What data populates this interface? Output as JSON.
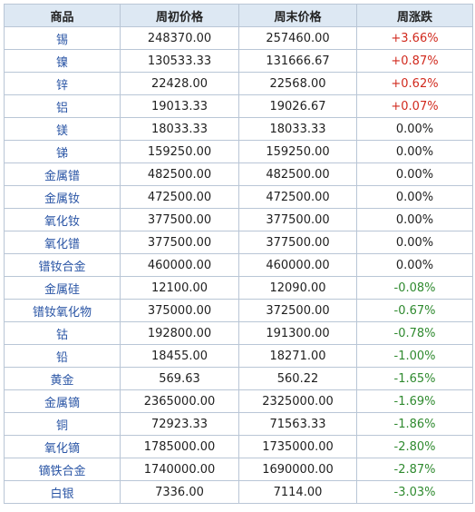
{
  "table": {
    "headers": [
      "商品",
      "周初价格",
      "周末价格",
      "周涨跌"
    ],
    "rows": [
      {
        "name": "锡",
        "start": "248370.00",
        "end": "257460.00",
        "change": "+3.66%",
        "trend": "up"
      },
      {
        "name": "镍",
        "start": "130533.33",
        "end": "131666.67",
        "change": "+0.87%",
        "trend": "up"
      },
      {
        "name": "锌",
        "start": "22428.00",
        "end": "22568.00",
        "change": "+0.62%",
        "trend": "up"
      },
      {
        "name": "铝",
        "start": "19013.33",
        "end": "19026.67",
        "change": "+0.07%",
        "trend": "up"
      },
      {
        "name": "镁",
        "start": "18033.33",
        "end": "18033.33",
        "change": "0.00%",
        "trend": "flat"
      },
      {
        "name": "锑",
        "start": "159250.00",
        "end": "159250.00",
        "change": "0.00%",
        "trend": "flat"
      },
      {
        "name": "金属镨",
        "start": "482500.00",
        "end": "482500.00",
        "change": "0.00%",
        "trend": "flat"
      },
      {
        "name": "金属钕",
        "start": "472500.00",
        "end": "472500.00",
        "change": "0.00%",
        "trend": "flat"
      },
      {
        "name": "氧化钕",
        "start": "377500.00",
        "end": "377500.00",
        "change": "0.00%",
        "trend": "flat"
      },
      {
        "name": "氧化镨",
        "start": "377500.00",
        "end": "377500.00",
        "change": "0.00%",
        "trend": "flat"
      },
      {
        "name": "镨钕合金",
        "start": "460000.00",
        "end": "460000.00",
        "change": "0.00%",
        "trend": "flat"
      },
      {
        "name": "金属硅",
        "start": "12100.00",
        "end": "12090.00",
        "change": "-0.08%",
        "trend": "down"
      },
      {
        "name": "镨钕氧化物",
        "start": "375000.00",
        "end": "372500.00",
        "change": "-0.67%",
        "trend": "down"
      },
      {
        "name": "钴",
        "start": "192800.00",
        "end": "191300.00",
        "change": "-0.78%",
        "trend": "down"
      },
      {
        "name": "铅",
        "start": "18455.00",
        "end": "18271.00",
        "change": "-1.00%",
        "trend": "down"
      },
      {
        "name": "黄金",
        "start": "569.63",
        "end": "560.22",
        "change": "-1.65%",
        "trend": "down"
      },
      {
        "name": "金属镝",
        "start": "2365000.00",
        "end": "2325000.00",
        "change": "-1.69%",
        "trend": "down"
      },
      {
        "name": "铜",
        "start": "72923.33",
        "end": "71563.33",
        "change": "-1.86%",
        "trend": "down"
      },
      {
        "name": "氧化镝",
        "start": "1785000.00",
        "end": "1735000.00",
        "change": "-2.80%",
        "trend": "down"
      },
      {
        "name": "镝铁合金",
        "start": "1740000.00",
        "end": "1690000.00",
        "change": "-2.87%",
        "trend": "down"
      },
      {
        "name": "白银",
        "start": "7336.00",
        "end": "7114.00",
        "change": "-3.03%",
        "trend": "down"
      }
    ]
  },
  "colors": {
    "header_bg": "#dde8f3",
    "border": "#b9c6d6",
    "name_text": "#2a55a5",
    "up": "#d12a1e",
    "down": "#2f8a2f",
    "flat": "#1f1f1f"
  }
}
